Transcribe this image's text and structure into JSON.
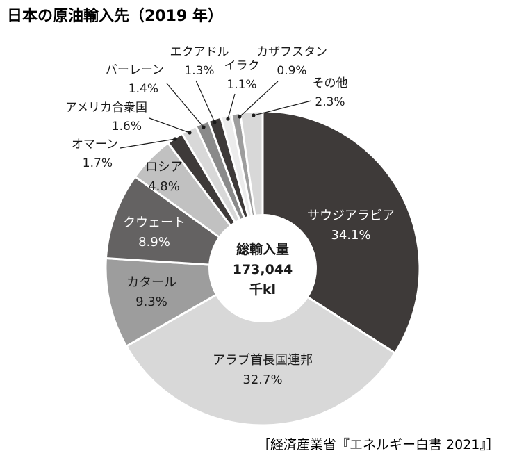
{
  "title": "日本の原油輸入先（2019 年）",
  "source": "［経済産業省『エネルギー白書 2021』］",
  "chart_data": {
    "type": "pie",
    "style": "donut",
    "title": "日本の原油輸入先（2019 年）",
    "center_label": [
      "総輸入量",
      "173,044",
      "千kl"
    ],
    "total": "173,044",
    "unit": "千kl",
    "slices": [
      {
        "name": "サウジアラビア",
        "value": 34.1,
        "label": "34.1%",
        "color": "#3e3a39"
      },
      {
        "name": "アラブ首長国連邦",
        "value": 32.7,
        "label": "32.7%",
        "color": "#d8d8d8"
      },
      {
        "name": "カタール",
        "value": 9.3,
        "label": "9.3%",
        "color": "#9d9d9d"
      },
      {
        "name": "クウェート",
        "value": 8.9,
        "label": "8.9%",
        "color": "#646262"
      },
      {
        "name": "ロシア",
        "value": 4.8,
        "label": "4.8%",
        "color": "#c1c1c1"
      },
      {
        "name": "オマーン",
        "value": 1.7,
        "label": "1.7%",
        "color": "#3e3a39"
      },
      {
        "name": "アメリカ合衆国",
        "value": 1.6,
        "label": "1.6%",
        "color": "#d8d8d8"
      },
      {
        "name": "バーレーン",
        "value": 1.4,
        "label": "1.4%",
        "color": "#8a8a8a"
      },
      {
        "name": "エクアドル",
        "value": 1.3,
        "label": "1.3%",
        "color": "#3e3a39"
      },
      {
        "name": "イラク",
        "value": 1.1,
        "label": "1.1%",
        "color": "#ececec"
      },
      {
        "name": "カザフスタン",
        "value": 0.9,
        "label": "0.9%",
        "color": "#9d9d9d"
      },
      {
        "name": "その他",
        "value": 2.3,
        "label": "2.3%",
        "color": "#d8d8d8"
      }
    ]
  }
}
